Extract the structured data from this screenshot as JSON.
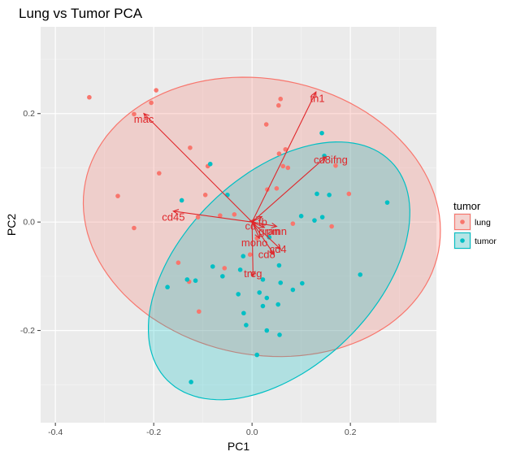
{
  "chart_data": {
    "type": "scatter",
    "title": "Lung vs Tumor PCA",
    "xlabel": "PC1",
    "ylabel": "PC2",
    "xlim": [
      -0.43,
      0.375
    ],
    "ylim": [
      -0.37,
      0.36
    ],
    "x_ticks": [
      -0.4,
      -0.2,
      0.0,
      0.2
    ],
    "x_tick_labels": [
      "-0.4",
      "-0.2",
      "0.0",
      "0.2"
    ],
    "y_ticks": [
      -0.2,
      0.0,
      0.2
    ],
    "y_tick_labels": [
      "-0.2",
      "0.0",
      "0.2"
    ],
    "grid": true,
    "legend": {
      "title": "tumor",
      "placement": "right"
    },
    "series": [
      {
        "name": "lung",
        "color": "#f8766d",
        "points": [
          [
            -0.331,
            0.23
          ],
          [
            -0.195,
            0.243
          ],
          [
            -0.205,
            0.22
          ],
          [
            -0.24,
            0.199
          ],
          [
            -0.126,
            0.137
          ],
          [
            -0.09,
            0.103
          ],
          [
            -0.189,
            0.09
          ],
          [
            -0.273,
            0.048
          ],
          [
            -0.24,
            -0.011
          ],
          [
            -0.036,
            0.014
          ],
          [
            -0.11,
            0.009
          ],
          [
            -0.065,
            0.012
          ],
          [
            -0.15,
            -0.075
          ],
          [
            -0.128,
            -0.11
          ],
          [
            -0.108,
            -0.165
          ],
          [
            -0.095,
            0.05
          ],
          [
            -0.056,
            -0.085
          ],
          [
            0.058,
            0.227
          ],
          [
            0.054,
            0.215
          ],
          [
            0.029,
            0.18
          ],
          [
            0.068,
            0.134
          ],
          [
            0.055,
            0.126
          ],
          [
            0.063,
            0.103
          ],
          [
            0.073,
            0.1
          ],
          [
            0.17,
            0.104
          ],
          [
            0.05,
            0.062
          ],
          [
            0.031,
            0.06
          ],
          [
            0.197,
            0.052
          ],
          [
            0.162,
            -0.008
          ],
          [
            0.083,
            -0.003
          ],
          [
            0.01,
            -0.03
          ],
          [
            -0.004,
            -0.06
          ]
        ]
      },
      {
        "name": "tumor",
        "color": "#00bfc4",
        "points": [
          [
            0.142,
            0.164
          ],
          [
            0.147,
            0.122
          ],
          [
            0.132,
            0.052
          ],
          [
            0.157,
            0.05
          ],
          [
            0.1,
            0.011
          ],
          [
            0.143,
            0.009
          ],
          [
            0.127,
            0.003
          ],
          [
            0.275,
            0.036
          ],
          [
            0.22,
            -0.097
          ],
          [
            0.102,
            -0.113
          ],
          [
            0.083,
            -0.125
          ],
          [
            -0.085,
            0.107
          ],
          [
            -0.143,
            0.04
          ],
          [
            -0.05,
            0.05
          ],
          [
            -0.172,
            -0.12
          ],
          [
            -0.132,
            -0.106
          ],
          [
            -0.08,
            -0.082
          ],
          [
            -0.115,
            -0.108
          ],
          [
            -0.06,
            -0.1
          ],
          [
            -0.018,
            -0.063
          ],
          [
            -0.024,
            -0.088
          ],
          [
            -0.028,
            -0.133
          ],
          [
            -0.017,
            -0.168
          ],
          [
            -0.012,
            -0.19
          ],
          [
            0.015,
            -0.13
          ],
          [
            0.03,
            -0.14
          ],
          [
            0.022,
            -0.155
          ],
          [
            0.055,
            -0.08
          ],
          [
            0.058,
            -0.112
          ],
          [
            0.053,
            -0.152
          ],
          [
            0.022,
            -0.106
          ],
          [
            0.03,
            -0.2
          ],
          [
            0.056,
            -0.208
          ],
          [
            0.01,
            -0.245
          ],
          [
            -0.124,
            -0.295
          ],
          [
            0.035,
            -0.028
          ]
        ]
      }
    ],
    "ellipses": [
      {
        "series": "lung",
        "cx": 0.02,
        "cy": 0.0095,
        "rx": 0.365,
        "ry": 0.255,
        "angle_deg": -8,
        "fill": "#f8766d",
        "stroke": "#f8766d"
      },
      {
        "series": "tumor",
        "cx": 0.055,
        "cy": -0.09,
        "rx": 0.305,
        "ry": 0.185,
        "angle_deg": 38,
        "fill": "#00bfc4",
        "stroke": "#00bfc4"
      }
    ],
    "loadings": {
      "color": "#e0262a",
      "origin": [
        0.0,
        0.0
      ],
      "vectors": [
        {
          "label": "mac",
          "x": -0.22,
          "y": 0.2,
          "lx": -0.22,
          "ly": 0.19
        },
        {
          "label": "th1",
          "x": 0.13,
          "y": 0.24,
          "lx": 0.133,
          "ly": 0.228
        },
        {
          "label": "cd8ifng",
          "x": 0.15,
          "y": 0.12,
          "lx": 0.16,
          "ly": 0.115
        },
        {
          "label": "cd45",
          "x": -0.16,
          "y": 0.02,
          "lx": -0.16,
          "ly": 0.009
        },
        {
          "label": "cd4",
          "x": 0.058,
          "y": -0.05,
          "lx": 0.053,
          "ly": -0.05
        },
        {
          "label": "cd8",
          "x": 0.045,
          "y": -0.06,
          "lx": 0.03,
          "ly": -0.06
        },
        {
          "label": "treg",
          "x": 0.002,
          "y": -0.1,
          "lx": 0.002,
          "ly": -0.095
        },
        {
          "label": "gran",
          "x": 0.025,
          "y": -0.01,
          "lx": 0.035,
          "ly": -0.017
        },
        {
          "label": "pmn",
          "x": 0.05,
          "y": -0.008,
          "lx": 0.05,
          "ly": -0.017
        },
        {
          "label": "mono",
          "x": 0.015,
          "y": -0.03,
          "lx": 0.005,
          "ly": -0.038
        },
        {
          "label": "cd",
          "x": 0.005,
          "y": 0.005,
          "lx": -0.003,
          "ly": -0.007
        },
        {
          "label": "tb",
          "x": 0.02,
          "y": 0.01,
          "lx": 0.022,
          "ly": 0.0
        }
      ]
    }
  }
}
